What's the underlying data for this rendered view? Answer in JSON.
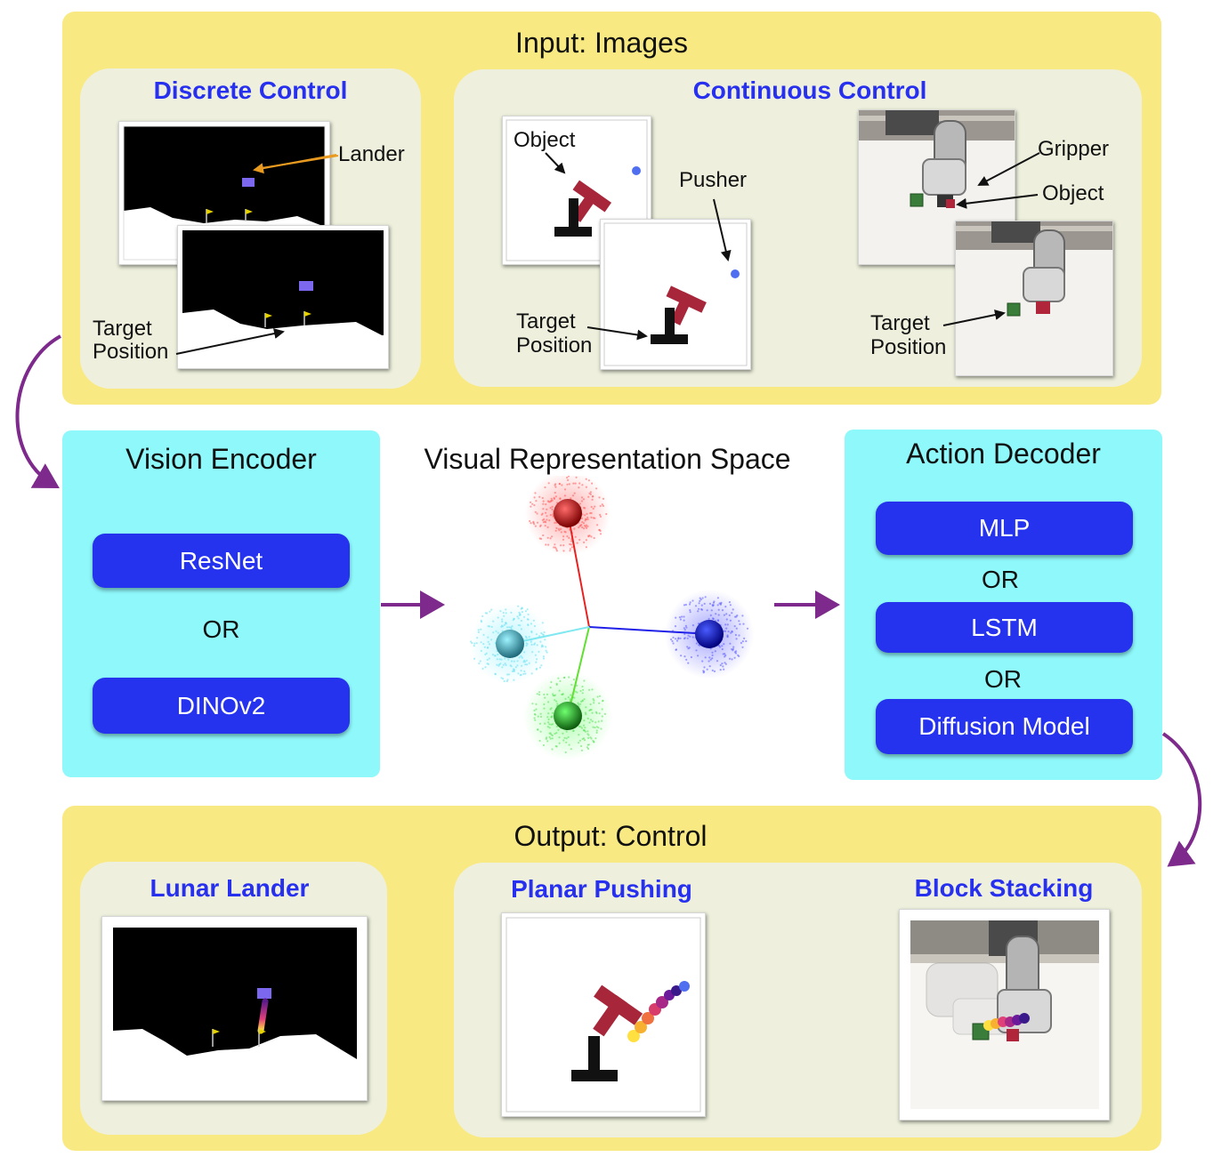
{
  "input": {
    "title": "Input: Images",
    "discrete": {
      "title": "Discrete Control",
      "lander_label": "Lander",
      "target_label_1": "Target",
      "target_label_2": "Position"
    },
    "continuous": {
      "title": "Continuous Control",
      "object_label": "Object",
      "pusher_label": "Pusher",
      "target_label_1": "Target",
      "target_label_2": "Position",
      "gripper_label": "Gripper",
      "object_label_2": "Object",
      "target_label_3": "Target",
      "target_label_4": "Position"
    }
  },
  "encoder": {
    "title": "Vision Encoder",
    "option1": "ResNet",
    "or": "OR",
    "option2": "DINOv2"
  },
  "representation": {
    "title": "Visual Representation Space"
  },
  "decoder": {
    "title": "Action Decoder",
    "option1": "MLP",
    "or1": "OR",
    "option2": "LSTM",
    "or2": "OR",
    "option3": "Diffusion Model"
  },
  "output": {
    "title": "Output: Control",
    "lunar": "Lunar Lander",
    "pushing": "Planar Pushing",
    "stacking": "Block Stacking"
  },
  "colors": {
    "yellow": "#f9e983",
    "panel": "#eef0dd",
    "cyan": "#8ef8fb",
    "button": "#2533ee",
    "subtitle": "#2730ee",
    "arrow": "#7d2a8c",
    "tee": "#a8263a"
  }
}
